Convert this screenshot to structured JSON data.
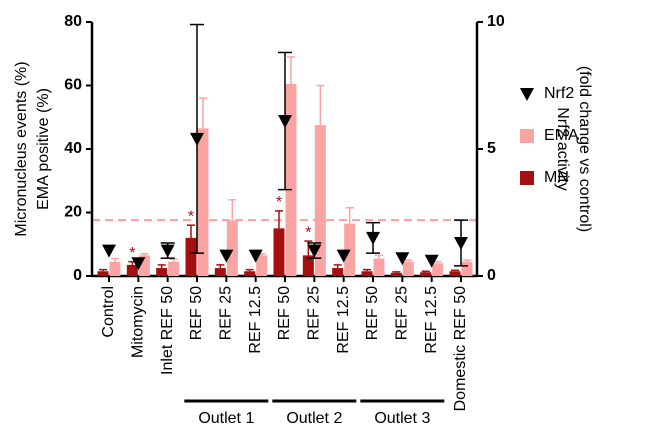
{
  "chart_data": {
    "type": "bar",
    "categories": [
      "Control",
      "Mitomycin",
      "Inlet REF 50",
      "REF 50",
      "REF 25",
      "REF 12.5",
      "REF 50",
      "REF 25",
      "REF 12.5",
      "REF 50",
      "REF 25",
      "REF 12.5",
      "Domestic REF 50"
    ],
    "groups": [
      {
        "name": "Outlet 1",
        "categories": [
          3,
          5
        ]
      },
      {
        "name": "Outlet 2",
        "categories": [
          6,
          8
        ]
      },
      {
        "name": "Outlet 3",
        "categories": [
          9,
          11
        ]
      }
    ],
    "ylabel": [
      "Micronucleus events (%)",
      "EMA positive (%)"
    ],
    "y2label": [
      "Nrf2 activity",
      "(fold change vs control)"
    ],
    "ylim": [
      0,
      80
    ],
    "yticks": [
      0,
      20,
      40,
      60,
      80
    ],
    "y2lim": [
      0,
      10
    ],
    "y2ticks": [
      0,
      5,
      10
    ],
    "threshold": {
      "axis": "y2",
      "value": 2.2,
      "color": "#f7a1a1"
    },
    "significance_label": "*",
    "significant": [
      false,
      true,
      false,
      true,
      false,
      false,
      true,
      true,
      false,
      false,
      false,
      false,
      false
    ],
    "series": [
      {
        "name": "Nrf2",
        "kind": "marker",
        "axis": "y2",
        "color": "#000000",
        "values": [
          1.0,
          0.5,
          1.0,
          5.4,
          0.8,
          0.8,
          6.1,
          1.0,
          0.8,
          1.5,
          0.7,
          0.6,
          1.3
        ],
        "errors": [
          0,
          0,
          0.3,
          4.5,
          0,
          0,
          2.7,
          0.3,
          0,
          0.6,
          0,
          0,
          0.9
        ]
      },
      {
        "name": "EMA",
        "kind": "bar",
        "axis": "y",
        "color": "#f9a3a3",
        "values": [
          4.5,
          6.5,
          4.5,
          46.5,
          17.5,
          6.5,
          60.5,
          47.5,
          16.5,
          5.5,
          4.5,
          4,
          4.5
        ],
        "errors": [
          1,
          0.5,
          0.8,
          9.5,
          6.5,
          0.5,
          8.5,
          12.5,
          5,
          1,
          0.5,
          0.5,
          0.5
        ]
      },
      {
        "name": "MN",
        "kind": "bar",
        "axis": "y",
        "color": "#a50f0f",
        "values": [
          1.5,
          3.5,
          2.5,
          12,
          2.5,
          1.5,
          15,
          6.5,
          2.5,
          1.5,
          1,
          1.2,
          1.5
        ],
        "errors": [
          0.5,
          1,
          1,
          4,
          1,
          0.5,
          5.5,
          4.5,
          1,
          0.5,
          0.3,
          0.3,
          0.3
        ]
      }
    ]
  }
}
